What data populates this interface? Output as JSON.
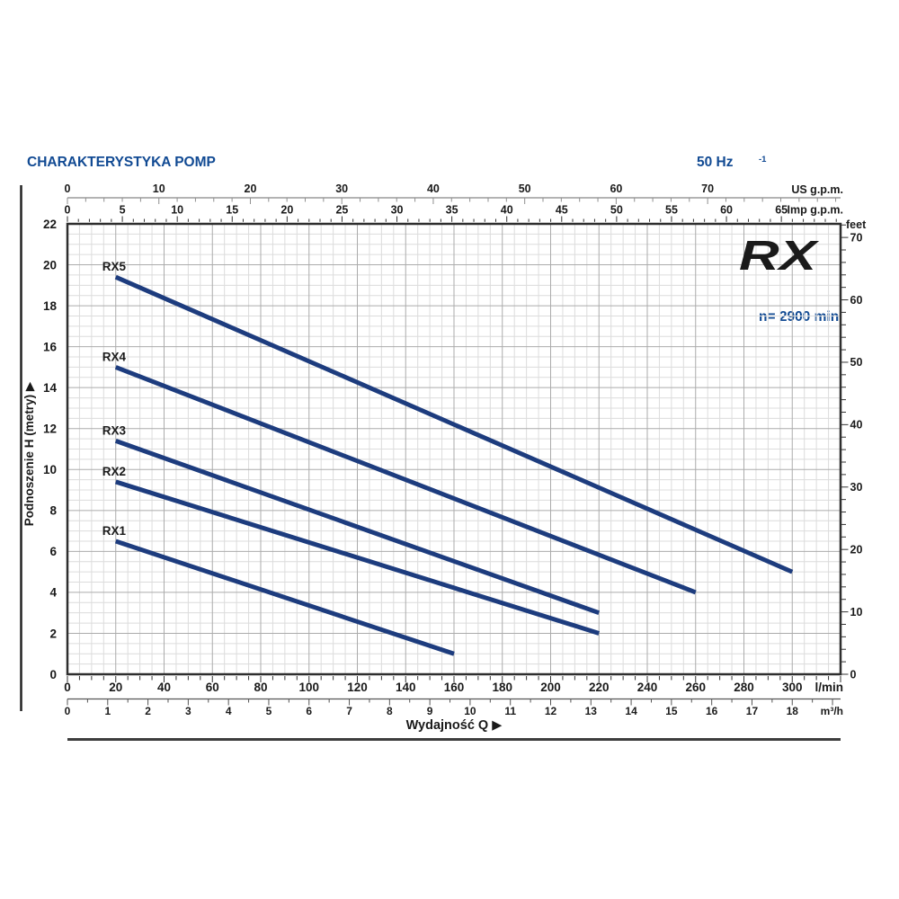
{
  "header": {
    "title": "CHARAKTERYSTYKA POMP",
    "frequency": "50 Hz",
    "speed_prefix": "n= 2900 min",
    "speed_exponent": "-1",
    "text_color": "#114a93"
  },
  "logo": {
    "text": "RX",
    "color": "#293380"
  },
  "chart_data": {
    "type": "line",
    "title": "CHARAKTERYSTYKA POMP",
    "xlabel": "Wydajność Q",
    "ylabel": "Podnoszenie H (metry)",
    "axis_arrow": "▶",
    "x_range_lmin": [
      0,
      320
    ],
    "y_range_m": [
      0,
      22
    ],
    "grid": {
      "minor_color": "#dcdcdc",
      "major_color": "#ababab",
      "border_color": "#2e2e2e"
    },
    "axes": {
      "us_gpm": {
        "unit": "US g.p.m.",
        "lmin_per_unit": 3.78541,
        "labels": [
          0,
          10,
          20,
          30,
          40,
          50,
          60,
          70
        ],
        "minor_step": 2,
        "tick_max": 84
      },
      "imp_gpm": {
        "unit": "Imp g.p.m.",
        "lmin_per_unit": 4.54609,
        "labels": [
          0,
          5,
          10,
          15,
          20,
          25,
          30,
          35,
          40,
          45,
          50,
          55,
          60,
          65
        ],
        "minor_step": 1,
        "tick_max": 70
      },
      "lmin": {
        "unit": "l/min",
        "lmin_per_unit": 1,
        "labels": [
          0,
          20,
          40,
          60,
          80,
          100,
          120,
          140,
          160,
          180,
          200,
          220,
          240,
          260,
          280,
          300
        ],
        "minor_step": 5,
        "tick_max": 320
      },
      "m3h": {
        "unit": "m³/h",
        "lmin_per_unit": 16.6667,
        "labels": [
          0,
          1,
          2,
          3,
          4,
          5,
          6,
          7,
          8,
          9,
          10,
          11,
          12,
          13,
          14,
          15,
          16,
          17,
          18
        ],
        "minor_step": 0.5,
        "tick_max": 19
      },
      "meters": {
        "label": "Podnoszenie H (metry)",
        "labels": [
          0,
          2,
          4,
          6,
          8,
          10,
          12,
          14,
          16,
          18,
          20,
          22
        ],
        "minor_step": 0.5
      },
      "feet": {
        "unit": "feet",
        "m_per_unit": 0.3048,
        "labels": [
          0,
          10,
          20,
          30,
          40,
          50,
          60,
          70
        ],
        "minor_step": 2,
        "tick_max": 72
      }
    },
    "series": [
      {
        "name": "RX1",
        "points_lmin_m": [
          [
            20,
            6.5
          ],
          [
            160,
            1
          ]
        ]
      },
      {
        "name": "RX2",
        "points_lmin_m": [
          [
            20,
            9.4
          ],
          [
            220,
            2
          ]
        ]
      },
      {
        "name": "RX3",
        "points_lmin_m": [
          [
            20,
            11.4
          ],
          [
            220,
            3
          ]
        ]
      },
      {
        "name": "RX4",
        "points_lmin_m": [
          [
            20,
            15.0
          ],
          [
            260,
            4
          ]
        ]
      },
      {
        "name": "RX5",
        "points_lmin_m": [
          [
            20,
            19.4
          ],
          [
            300,
            5
          ]
        ]
      }
    ],
    "series_color": "#1d3c7e"
  }
}
